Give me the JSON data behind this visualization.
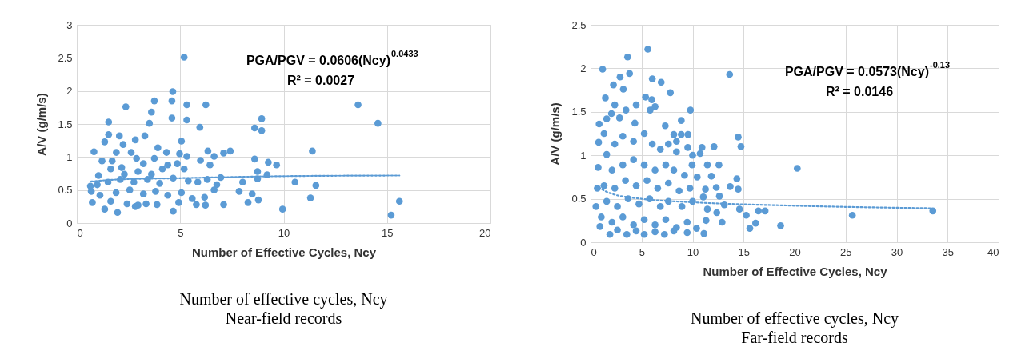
{
  "chart_data": [
    {
      "type": "scatter",
      "xlabel": "Number of Effective Cycles, Ncy",
      "ylabel": "A/V (g/m/s)",
      "xlim": [
        0,
        20
      ],
      "ylim": [
        0,
        3
      ],
      "xticks": [
        0,
        5,
        10,
        15,
        20
      ],
      "yticks": [
        0,
        0.5,
        1,
        1.5,
        2,
        2.5,
        3
      ],
      "grid": true,
      "annotations": [
        "PGA/PGV = 0.0606(Ncy)$^{0.0433}$",
        "R² = 0.0027",
        "Number of effective cycles, Ncy",
        "Near-field records"
      ],
      "series": [
        {
          "marker": "circle",
          "color": "#5b9bd5",
          "x": [
            5.19,
            4.64,
            4.6,
            3.75,
            2.37,
            5.32,
            6.24,
            13.6,
            3.61,
            3.51,
            1.54,
            4.6,
            5.32,
            14.56,
            8.94,
            8.6,
            8.94,
            5.95,
            1.54,
            2.06,
            1.35,
            3.29,
            2.83,
            5.06,
            0.83,
            2.24,
            3.92,
            4.34,
            4.97,
            5.32,
            6.34,
            7.1,
            7.42,
            11.39,
            6.64,
            1.22,
            5.98,
            6.44,
            8.6,
            9.26,
            9.66,
            8.74,
            9.2,
            8.74,
            6.96,
            8.02,
            10.55,
            11.56,
            11.3,
            9.95,
            15.2,
            15.6,
            7.85,
            8.28,
            8.78,
            8.48,
            7.1,
            6.22,
            5.78,
            4.93,
            4.66,
            1.97,
            1.35,
            0.75,
            0.7,
            0.66,
            1.05,
            1.71,
            1.91,
            2.63,
            2.89,
            3.75,
            4.4,
            4.86,
            1.64,
            2.17,
            2.96,
            3.61,
            4.14,
            5.19,
            1.51,
            2.1,
            2.76,
            3.42,
            4.01,
            4.66,
            5.39,
            5.85,
            6.31,
            6.77,
            1.9,
            2.56,
            3.22,
            3.81,
            4.4,
            5.06,
            5.58,
            6.18,
            6.64,
            1.12,
            1.64,
            2.43,
            2.96,
            3.35,
            3.88,
            2.83,
            0.99,
            2.3,
            3.22
          ],
          "values": [
            2.51,
            1.99,
            1.85,
            1.85,
            1.76,
            1.79,
            1.79,
            1.79,
            1.68,
            1.51,
            1.53,
            1.59,
            1.56,
            1.51,
            1.58,
            1.44,
            1.4,
            1.45,
            1.34,
            1.32,
            1.23,
            1.32,
            1.26,
            1.24,
            1.08,
            1.19,
            1.14,
            1.07,
            1.05,
            1.01,
            1.09,
            1.06,
            1.09,
            1.09,
            1.01,
            0.94,
            0.95,
            0.88,
            0.97,
            0.92,
            0.88,
            0.78,
            0.73,
            0.67,
            0.69,
            0.62,
            0.62,
            0.57,
            0.38,
            0.21,
            0.12,
            0.33,
            0.48,
            0.31,
            0.35,
            0.44,
            0.28,
            0.27,
            0.28,
            0.31,
            0.18,
            0.16,
            0.21,
            0.31,
            0.48,
            0.56,
            0.72,
            0.94,
            1.07,
            1.07,
            0.98,
            0.98,
            0.88,
            0.9,
            0.82,
            0.84,
            0.78,
            0.74,
            0.82,
            0.82,
            0.62,
            0.66,
            0.62,
            0.66,
            0.6,
            0.68,
            0.64,
            0.62,
            0.66,
            0.58,
            0.46,
            0.5,
            0.44,
            0.48,
            0.42,
            0.46,
            0.37,
            0.39,
            0.5,
            0.42,
            0.33,
            0.29,
            0.27,
            0.29,
            0.28,
            0.25,
            0.58,
            0.74,
            0.9
          ]
        },
        {
          "type": "line",
          "marker": "none",
          "line_style": "dotted",
          "color": "#5b9bd5",
          "x": [
            0.7,
            2,
            5,
            10,
            15.6
          ],
          "values": [
            0.63,
            0.66,
            0.68,
            0.71,
            0.72
          ]
        }
      ]
    },
    {
      "type": "scatter",
      "xlabel": "Number of Effective Cycles, Ncy",
      "ylabel": "A/V (g/m/s)",
      "xlim": [
        0,
        40
      ],
      "ylim": [
        0,
        2.5
      ],
      "xticks": [
        0,
        5,
        10,
        15,
        20,
        25,
        30,
        35,
        40
      ],
      "yticks": [
        0,
        0.5,
        1,
        1.5,
        2,
        2.5
      ],
      "grid": true,
      "annotations": [
        "PGA/PGV = 0.0573(Ncy)$^{-0.13}$",
        "R² = 0.0146",
        "Number of effective cycles, Ncy",
        "Far-field records"
      ],
      "series": [
        {
          "marker": "circle",
          "color": "#5b9bd5",
          "x": [
            5.61,
            3.63,
            1.18,
            13.63,
            3.82,
            2.89,
            6.05,
            6.92,
            2.24,
            3.21,
            7.82,
            1.45,
            5.39,
            6.0,
            2.37,
            4.47,
            6.32,
            9.79,
            3.47,
            2.05,
            5.84,
            1.58,
            8.89,
            0.84,
            2.84,
            4.34,
            7.32,
            8.16,
            8.89,
            9.55,
            14.47,
            14.74,
            12.1,
            10.92,
            9.53,
            8.42,
            10.0,
            10.74,
            20.26,
            11.45,
            12.58,
            9.95,
            10.45,
            11.84,
            14.34,
            13.68,
            14.47,
            12.32,
            11.26,
            11.05,
            12.63,
            13.11,
            14.6,
            15.26,
            16.45,
            17.11,
            25.66,
            33.55,
            15.61,
            16.18,
            18.63,
            11.11,
            10.39,
            11.32,
            12.89,
            12.37,
            11.45,
            7.24,
            5.26,
            3.55,
            1.89,
            0.92,
            0.53,
            0.66,
            0.74,
            0.79,
            1.32,
            1.58,
            2.37,
            3.16,
            4.21,
            5.26,
            6.05,
            6.84,
            7.63,
            8.42,
            2.1,
            3.16,
            4.21,
            5.26,
            6.32,
            7.37,
            8.16,
            9.21,
            1.32,
            2.37,
            3.42,
            4.47,
            5.53,
            6.58,
            7.63,
            8.68,
            9.74,
            1.58,
            2.63,
            3.68,
            4.74,
            5.79,
            6.84,
            7.63,
            8.95,
            10.0,
            1.05,
            2.1,
            3.16,
            4.21,
            5.26,
            6.32,
            7.37,
            8.42,
            9.47,
            2.63,
            4.47,
            6.32,
            8.16,
            9.47
          ],
          "values": [
            2.22,
            2.13,
            1.99,
            1.93,
            1.94,
            1.9,
            1.88,
            1.84,
            1.81,
            1.76,
            1.72,
            1.66,
            1.67,
            1.64,
            1.58,
            1.58,
            1.56,
            1.52,
            1.52,
            1.48,
            1.52,
            1.42,
            1.4,
            1.36,
            1.43,
            1.37,
            1.34,
            1.24,
            1.24,
            1.24,
            1.21,
            1.1,
            1.1,
            1.09,
            1.09,
            1.04,
            1.0,
            1.02,
            0.85,
            0.89,
            0.89,
            0.89,
            0.75,
            0.76,
            0.73,
            0.64,
            0.61,
            0.63,
            0.61,
            0.52,
            0.53,
            0.43,
            0.38,
            0.31,
            0.36,
            0.36,
            0.31,
            0.36,
            0.16,
            0.22,
            0.19,
            0.1,
            0.16,
            0.25,
            0.23,
            0.34,
            0.38,
            0.09,
            0.09,
            0.09,
            0.09,
            0.18,
            0.41,
            0.62,
            0.86,
            1.15,
            1.25,
            1.01,
            1.13,
            1.22,
            1.16,
            1.25,
            1.13,
            1.07,
            1.13,
            1.16,
            0.83,
            0.89,
            0.95,
            0.89,
            0.83,
            0.89,
            0.83,
            0.77,
            0.65,
            0.62,
            0.71,
            0.65,
            0.71,
            0.62,
            0.68,
            0.59,
            0.62,
            0.47,
            0.41,
            0.5,
            0.44,
            0.5,
            0.41,
            0.47,
            0.41,
            0.47,
            0.29,
            0.23,
            0.29,
            0.2,
            0.26,
            0.2,
            0.26,
            0.17,
            0.23,
            0.14,
            0.13,
            0.12,
            0.13,
            0.11
          ]
        },
        {
          "type": "line",
          "marker": "none",
          "line_style": "dotted",
          "color": "#5b9bd5",
          "x": [
            0.8,
            2,
            5,
            10,
            20,
            33.4
          ],
          "values": [
            0.63,
            0.56,
            0.5,
            0.46,
            0.42,
            0.39
          ]
        }
      ]
    }
  ]
}
